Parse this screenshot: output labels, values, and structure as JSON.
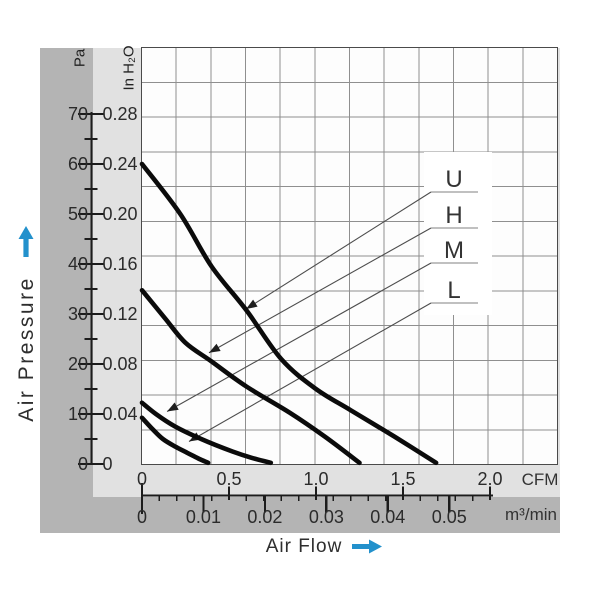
{
  "labels": {
    "pa_unit": "Pa",
    "inh2o_unit": "In H₂O",
    "cfm_unit": "CFM",
    "m3min_unit": "m³/min",
    "x_axis": "Air Flow",
    "y_axis": "Air Pressure"
  },
  "colors": {
    "accent_blue": "#2391cc",
    "panel_gray": "#b4b4b4",
    "panel_light": "#e1e1e1",
    "grid": "#8f8f8f",
    "plot_border": "#4a4a4a",
    "curve": "#0b0b0b",
    "ruler": "#1c1c1c",
    "leader": "#4d4d4d",
    "underline": "#9a9a9a",
    "text": "#2b2b2b"
  },
  "chart_data": {
    "type": "line",
    "title": "Fan performance curves: static air pressure vs air flow for speeds U, H, M, L",
    "grid": {
      "columns": 12,
      "rows": 12,
      "shown": true
    },
    "x_axis": {
      "label": "Air Flow",
      "scales": [
        {
          "unit": "CFM",
          "tick_labels": [
            "0",
            "0.5",
            "1.0",
            "1.5",
            "2.0"
          ],
          "tick_values": [
            0,
            0.5,
            1.0,
            1.5,
            2.0
          ],
          "minor_step": 0.1
        },
        {
          "unit": "m³/min",
          "tick_labels": [
            "0",
            "0.01",
            "0.02",
            "0.03",
            "0.04",
            "0.05"
          ],
          "tick_values": [
            0,
            0.01,
            0.02,
            0.03,
            0.04,
            0.05
          ]
        }
      ]
    },
    "y_axis": {
      "label": "Air Pressure",
      "scales": [
        {
          "unit": "Pa",
          "tick_labels": [
            "0",
            "10",
            "20",
            "30",
            "40",
            "50",
            "60",
            "70"
          ],
          "tick_values": [
            0,
            10,
            20,
            30,
            40,
            50,
            60,
            70
          ],
          "minor_step": 5
        },
        {
          "unit": "In H₂O",
          "tick_labels": [
            "0",
            "0.04",
            "0.08",
            "0.12",
            "0.16",
            "0.20",
            "0.24",
            "0.28"
          ],
          "tick_values": [
            0,
            0.04,
            0.08,
            0.12,
            0.16,
            0.2,
            0.24,
            0.28
          ]
        }
      ],
      "range_inh2o": [
        0,
        0.28
      ]
    },
    "legend": {
      "entries": [
        "U",
        "H",
        "M",
        "L"
      ],
      "position": "upper-right-inside"
    },
    "series": [
      {
        "name": "U",
        "points_cfm_inh2o": [
          [
            0,
            0.24
          ],
          [
            0.22,
            0.2
          ],
          [
            0.4,
            0.158
          ],
          [
            0.6,
            0.123
          ],
          [
            0.8,
            0.084
          ],
          [
            1.0,
            0.06
          ],
          [
            1.2,
            0.043
          ],
          [
            1.45,
            0.022
          ],
          [
            1.69,
            0.001
          ]
        ],
        "label_target_cfm_inh2o": [
          0.598,
          0.124
        ]
      },
      {
        "name": "H",
        "points_cfm_inh2o": [
          [
            0,
            0.139
          ],
          [
            0.13,
            0.117
          ],
          [
            0.25,
            0.097
          ],
          [
            0.4,
            0.082
          ],
          [
            0.6,
            0.062
          ],
          [
            0.85,
            0.041
          ],
          [
            1.05,
            0.022
          ],
          [
            1.25,
            0.001
          ]
        ],
        "label_target_cfm_inh2o": [
          0.385,
          0.089
        ]
      },
      {
        "name": "M",
        "points_cfm_inh2o": [
          [
            0,
            0.049
          ],
          [
            0.08,
            0.04
          ],
          [
            0.19,
            0.03
          ],
          [
            0.34,
            0.02
          ],
          [
            0.52,
            0.01
          ],
          [
            0.63,
            0.005
          ],
          [
            0.74,
            0.001
          ]
        ],
        "label_target_cfm_inh2o": [
          0.144,
          0.042
        ]
      },
      {
        "name": "L",
        "points_cfm_inh2o": [
          [
            0,
            0.037
          ],
          [
            0.06,
            0.028
          ],
          [
            0.12,
            0.02
          ],
          [
            0.19,
            0.014
          ],
          [
            0.26,
            0.009
          ],
          [
            0.33,
            0.004
          ],
          [
            0.38,
            0.001
          ]
        ],
        "label_target_cfm_inh2o": [
          0.27,
          0.018
        ]
      }
    ]
  }
}
